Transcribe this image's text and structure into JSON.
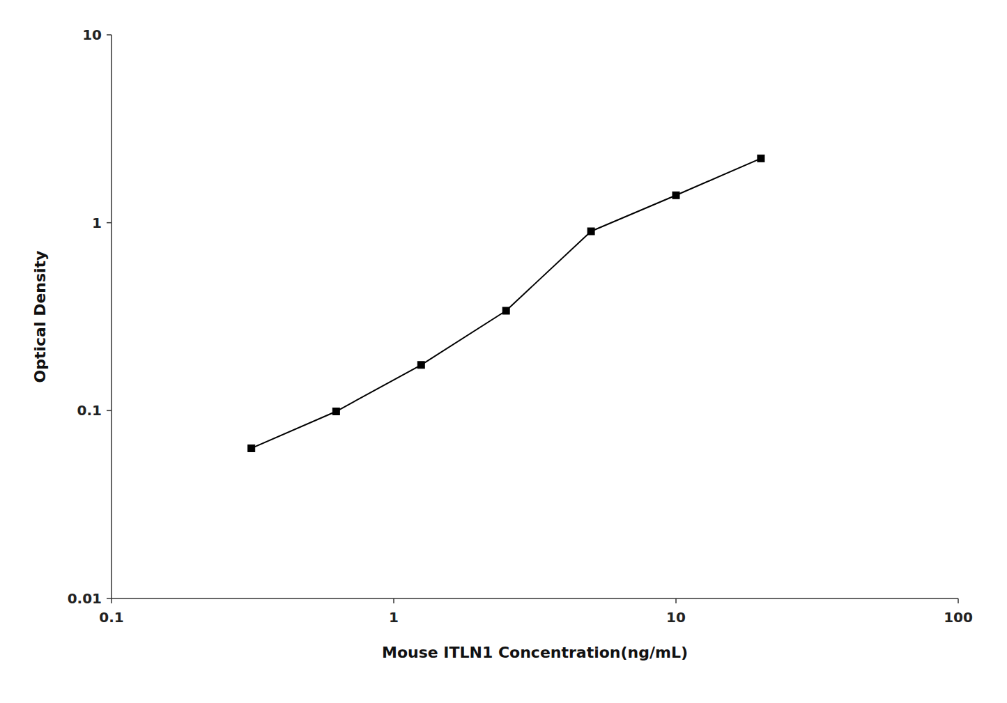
{
  "chart_data": {
    "type": "line",
    "xlabel": "Mouse ITLN1 Concentration(ng/mL)",
    "ylabel": "Optical Density",
    "x": [
      0.313,
      0.625,
      1.25,
      2.5,
      5.0,
      10.0,
      20.0
    ],
    "values": [
      0.063,
      0.099,
      0.175,
      0.34,
      0.9,
      1.4,
      2.2
    ],
    "color": "#000000",
    "marker": "square",
    "line_style": "solid",
    "log": true,
    "grid": false,
    "xlim": [
      0.1,
      100
    ],
    "ylim": [
      0.01,
      10
    ],
    "xticks": [
      0.1,
      1,
      10,
      100
    ],
    "yticks": [
      0.01,
      0.1,
      1,
      10
    ]
  }
}
